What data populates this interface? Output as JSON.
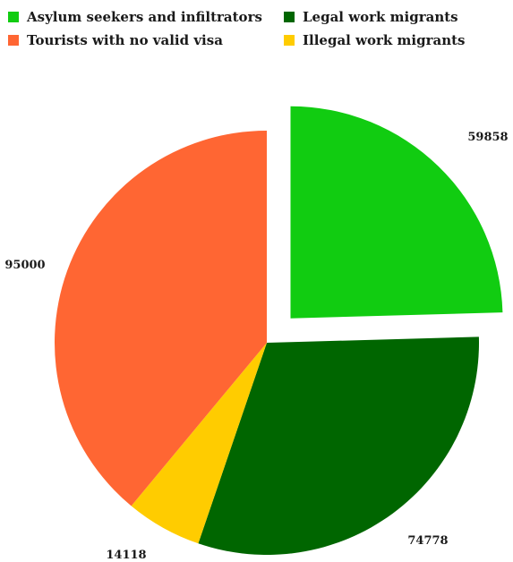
{
  "chart_data": {
    "type": "pie",
    "title": "",
    "legend_placement": "top",
    "slices": [
      {
        "label": "Asylum seekers and infiltrators",
        "value": 59858,
        "value_label": "59858",
        "color": "#11cc11",
        "exploded": true
      },
      {
        "label": "Legal work migrants",
        "value": 74778,
        "value_label": "74778",
        "color": "#006600",
        "exploded": false
      },
      {
        "label": "Illegal work migrants",
        "value": 14118,
        "value_label": "14118",
        "color": "#ffcc00",
        "exploded": false
      },
      {
        "label": "Tourists with no valid visa",
        "value": 95000,
        "value_label": "95000",
        "color": "#ff6633",
        "exploded": false
      }
    ]
  }
}
